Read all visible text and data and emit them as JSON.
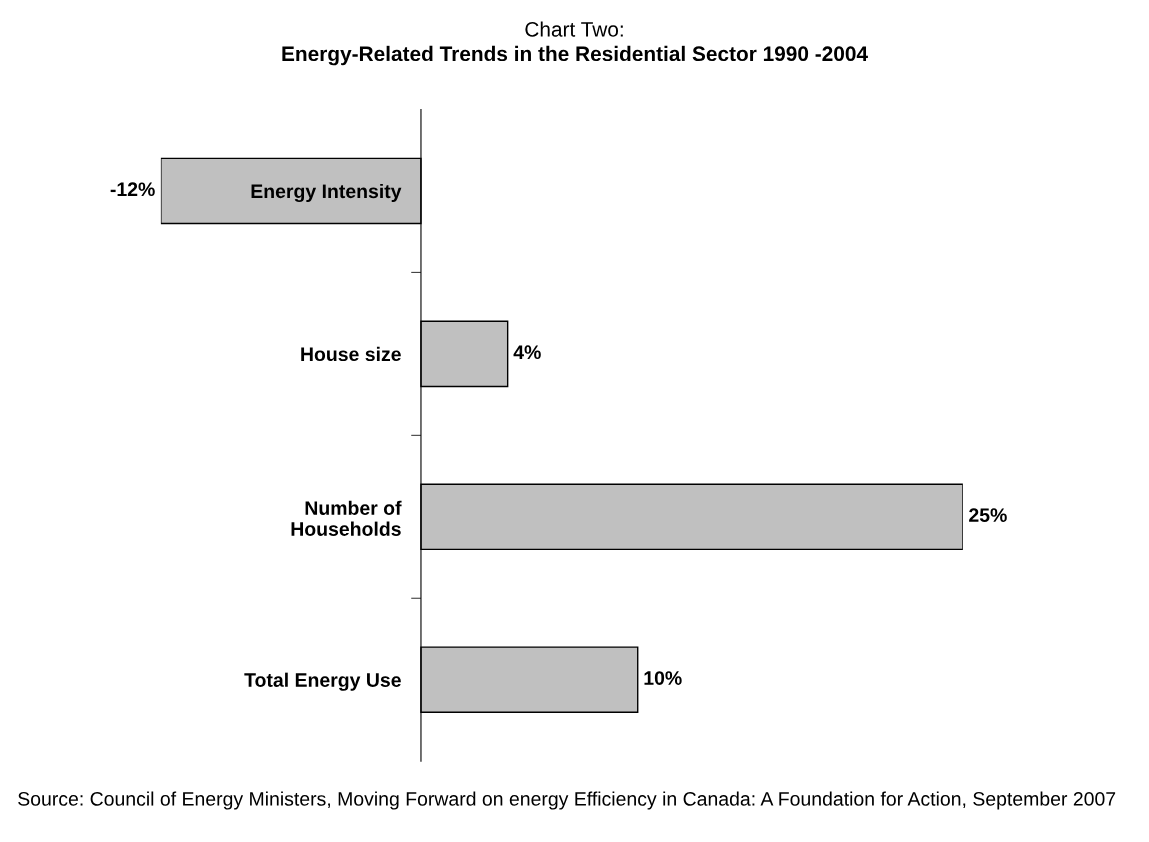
{
  "chart_data": {
    "type": "bar",
    "orientation": "horizontal",
    "title": "Chart Two:",
    "subtitle": "Energy-Related Trends in the Residential Sector 1990 -2004",
    "categories": [
      "Energy Intensity",
      "House size",
      "Number of\nHouseholds",
      "Total Energy Use"
    ],
    "values": [
      -12,
      4,
      25,
      10
    ],
    "color": "#c0c0c0",
    "value_labels": [
      "-12%",
      "4%",
      "25%",
      "10%"
    ],
    "tick_labels": "y",
    "grid": false,
    "legend": false,
    "annotations": [
      "Source: Council of Energy Ministers, Moving Forward on energy Efficiency in Canada: A Foundation for Action, September 2007"
    ]
  }
}
